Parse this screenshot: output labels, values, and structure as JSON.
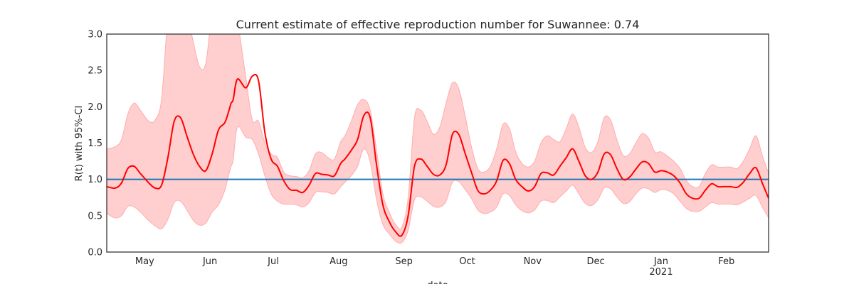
{
  "chart_data": {
    "type": "line",
    "title": "Current estimate of effective reproduction number for Suwannee: 0.74",
    "xlabel": "date",
    "ylabel": "R(t) with 95%-CI",
    "ylim": [
      0,
      3
    ],
    "yticks": [
      "0.0",
      "0.5",
      "1.0",
      "1.5",
      "2.0",
      "2.5",
      "3.0"
    ],
    "xlim": [
      "2020-04-13",
      "2021-02-21"
    ],
    "xticks": [
      {
        "date": "2020-05-01",
        "label": "May",
        "sublabel": ""
      },
      {
        "date": "2020-06-01",
        "label": "Jun",
        "sublabel": ""
      },
      {
        "date": "2020-07-01",
        "label": "Jul",
        "sublabel": ""
      },
      {
        "date": "2020-08-01",
        "label": "Aug",
        "sublabel": ""
      },
      {
        "date": "2020-09-01",
        "label": "Sep",
        "sublabel": ""
      },
      {
        "date": "2020-10-01",
        "label": "Oct",
        "sublabel": ""
      },
      {
        "date": "2020-11-01",
        "label": "Nov",
        "sublabel": ""
      },
      {
        "date": "2020-12-01",
        "label": "Dec",
        "sublabel": ""
      },
      {
        "date": "2021-01-01",
        "label": "Jan",
        "sublabel": "2021"
      },
      {
        "date": "2021-02-01",
        "label": "Feb",
        "sublabel": ""
      }
    ],
    "grid": false,
    "reference_line": {
      "y": 1.0,
      "color": "#1f77b4"
    },
    "colors": {
      "estimate": "#ff0000",
      "band": "#ffb3b3",
      "band_edge": "#ffadad"
    },
    "series": [
      {
        "x": [
          "2020-04-13",
          "2020-04-17",
          "2020-04-20",
          "2020-04-23",
          "2020-04-26",
          "2020-04-29",
          "2020-05-03",
          "2020-05-06",
          "2020-05-09",
          "2020-05-12",
          "2020-05-15",
          "2020-05-18",
          "2020-05-21",
          "2020-05-24",
          "2020-05-27",
          "2020-05-30",
          "2020-06-02",
          "2020-06-05",
          "2020-06-08",
          "2020-06-10",
          "2020-06-11",
          "2020-06-12",
          "2020-06-14",
          "2020-06-18",
          "2020-06-21",
          "2020-06-24",
          "2020-06-27",
          "2020-06-30",
          "2020-07-03",
          "2020-07-06",
          "2020-07-09",
          "2020-07-12",
          "2020-07-15",
          "2020-07-18",
          "2020-07-21",
          "2020-07-24",
          "2020-07-27",
          "2020-07-30",
          "2020-08-02",
          "2020-08-04",
          "2020-08-07",
          "2020-08-10",
          "2020-08-13",
          "2020-08-16",
          "2020-08-19",
          "2020-08-22",
          "2020-08-25",
          "2020-08-28",
          "2020-08-31",
          "2020-09-03",
          "2020-09-06",
          "2020-09-09",
          "2020-09-12",
          "2020-09-15",
          "2020-09-18",
          "2020-09-21",
          "2020-09-24",
          "2020-09-27",
          "2020-09-30",
          "2020-10-03",
          "2020-10-06",
          "2020-10-09",
          "2020-10-12",
          "2020-10-15",
          "2020-10-18",
          "2020-10-21",
          "2020-10-24",
          "2020-10-27",
          "2020-10-30",
          "2020-11-02",
          "2020-11-05",
          "2020-11-08",
          "2020-11-11",
          "2020-11-14",
          "2020-11-17",
          "2020-11-20",
          "2020-11-23",
          "2020-11-26",
          "2020-11-29",
          "2020-12-02",
          "2020-12-05",
          "2020-12-08",
          "2020-12-11",
          "2020-12-14",
          "2020-12-17",
          "2020-12-20",
          "2020-12-23",
          "2020-12-26",
          "2020-12-29",
          "2021-01-01",
          "2021-01-04",
          "2021-01-07",
          "2021-01-10",
          "2021-01-13",
          "2021-01-16",
          "2021-01-19",
          "2021-01-22",
          "2021-01-25",
          "2021-01-28",
          "2021-01-31",
          "2021-02-03",
          "2021-02-06",
          "2021-02-09",
          "2021-02-12",
          "2021-02-15",
          "2021-02-18",
          "2021-02-21"
        ],
        "y": [
          0.9,
          0.88,
          0.95,
          1.15,
          1.18,
          1.08,
          0.95,
          0.88,
          0.92,
          1.3,
          1.8,
          1.85,
          1.6,
          1.35,
          1.18,
          1.12,
          1.35,
          1.68,
          1.78,
          1.95,
          2.05,
          2.1,
          2.38,
          2.26,
          2.42,
          2.36,
          1.65,
          1.28,
          1.18,
          0.98,
          0.86,
          0.85,
          0.82,
          0.92,
          1.08,
          1.07,
          1.06,
          1.05,
          1.22,
          1.28,
          1.4,
          1.55,
          1.88,
          1.85,
          1.2,
          0.65,
          0.42,
          0.28,
          0.23,
          0.5,
          1.18,
          1.28,
          1.18,
          1.07,
          1.06,
          1.2,
          1.62,
          1.62,
          1.36,
          1.1,
          0.85,
          0.8,
          0.85,
          0.98,
          1.26,
          1.22,
          1.0,
          0.9,
          0.84,
          0.9,
          1.08,
          1.09,
          1.06,
          1.18,
          1.3,
          1.42,
          1.25,
          1.05,
          1.0,
          1.1,
          1.35,
          1.34,
          1.15,
          1.0,
          1.03,
          1.14,
          1.24,
          1.22,
          1.1,
          1.12,
          1.1,
          1.05,
          0.95,
          0.8,
          0.74,
          0.74,
          0.85,
          0.94,
          0.9,
          0.9,
          0.9,
          0.89,
          0.96,
          1.08,
          1.16,
          0.95,
          0.74
        ],
        "lower": [
          0.53,
          0.47,
          0.5,
          0.63,
          0.62,
          0.55,
          0.43,
          0.36,
          0.32,
          0.45,
          0.68,
          0.7,
          0.58,
          0.44,
          0.37,
          0.4,
          0.55,
          0.65,
          0.85,
          1.08,
          1.18,
          1.27,
          1.72,
          1.58,
          1.55,
          1.35,
          1.05,
          0.8,
          0.7,
          0.66,
          0.66,
          0.65,
          0.62,
          0.68,
          0.82,
          0.83,
          0.82,
          0.8,
          0.9,
          0.96,
          1.05,
          1.18,
          1.42,
          1.24,
          0.72,
          0.38,
          0.25,
          0.15,
          0.13,
          0.3,
          0.72,
          0.76,
          0.7,
          0.63,
          0.62,
          0.7,
          0.96,
          0.97,
          0.86,
          0.74,
          0.58,
          0.53,
          0.55,
          0.62,
          0.8,
          0.78,
          0.65,
          0.57,
          0.54,
          0.58,
          0.7,
          0.71,
          0.68,
          0.76,
          0.84,
          0.92,
          0.8,
          0.67,
          0.64,
          0.72,
          0.88,
          0.87,
          0.76,
          0.67,
          0.69,
          0.8,
          0.88,
          0.87,
          0.82,
          0.86,
          0.85,
          0.8,
          0.7,
          0.6,
          0.56,
          0.56,
          0.62,
          0.68,
          0.66,
          0.66,
          0.66,
          0.65,
          0.69,
          0.74,
          0.78,
          0.62,
          0.47
        ],
        "upper": [
          1.42,
          1.45,
          1.55,
          1.9,
          2.05,
          1.95,
          1.8,
          1.82,
          2.1,
          3.2,
          3.3,
          3.4,
          3.3,
          2.9,
          2.55,
          2.6,
          3.3,
          3.4,
          3.45,
          3.5,
          3.5,
          3.45,
          3.2,
          2.4,
          1.82,
          1.8,
          1.5,
          1.35,
          1.3,
          1.1,
          1.05,
          1.04,
          1.02,
          1.12,
          1.35,
          1.37,
          1.3,
          1.28,
          1.52,
          1.6,
          1.8,
          2.03,
          2.1,
          1.95,
          1.4,
          0.8,
          0.55,
          0.38,
          0.34,
          0.75,
          1.85,
          1.95,
          1.8,
          1.62,
          1.72,
          2.05,
          2.33,
          2.25,
          1.88,
          1.45,
          1.15,
          1.1,
          1.18,
          1.42,
          1.76,
          1.7,
          1.38,
          1.22,
          1.17,
          1.25,
          1.5,
          1.6,
          1.55,
          1.52,
          1.7,
          1.9,
          1.72,
          1.44,
          1.37,
          1.52,
          1.85,
          1.82,
          1.55,
          1.33,
          1.35,
          1.5,
          1.63,
          1.57,
          1.38,
          1.38,
          1.32,
          1.25,
          1.15,
          0.98,
          0.9,
          0.9,
          1.08,
          1.2,
          1.17,
          1.17,
          1.17,
          1.15,
          1.25,
          1.42,
          1.6,
          1.33,
          1.08
        ]
      }
    ]
  }
}
